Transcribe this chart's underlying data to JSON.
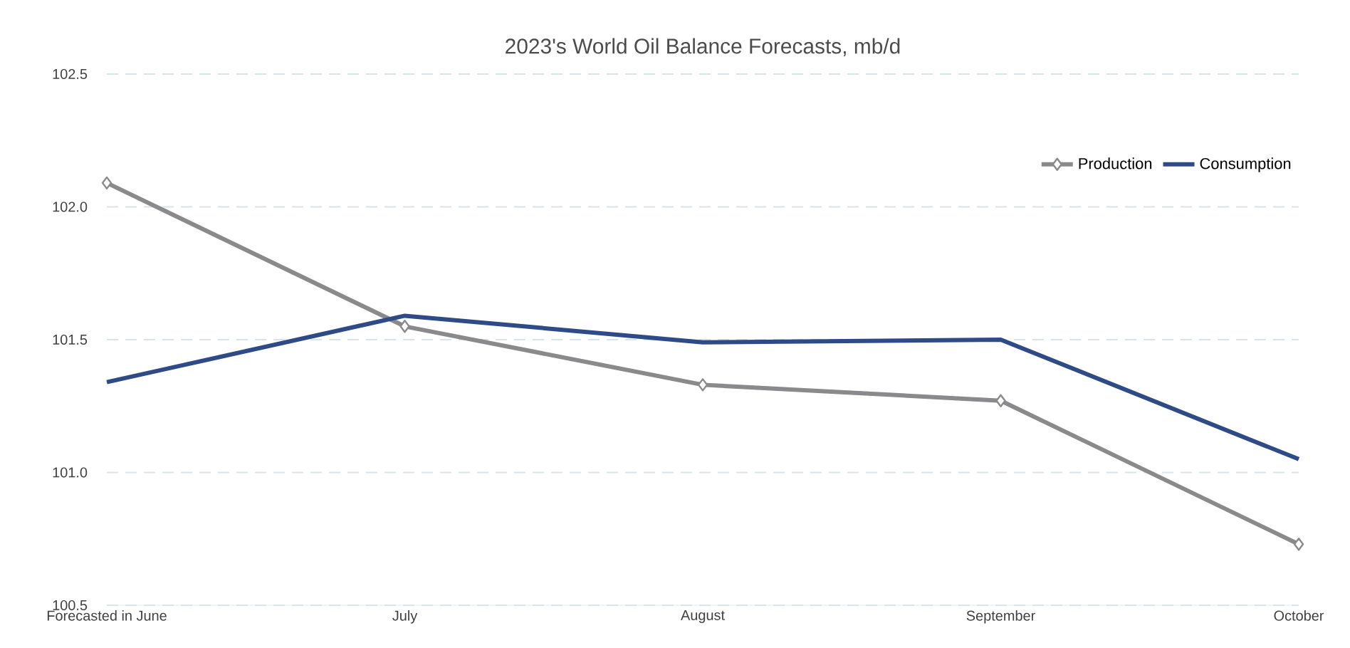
{
  "chart_data": {
    "type": "line",
    "title": "2023's World Oil Balance Forecasts, mb/d",
    "categories": [
      "Forecasted in June",
      "July",
      "August",
      "September",
      "October"
    ],
    "series": [
      {
        "name": "Production",
        "color": "#8a8a8c",
        "marker": "diamond",
        "values": [
          102.09,
          101.55,
          101.33,
          101.27,
          100.73
        ]
      },
      {
        "name": "Consumption",
        "color": "#2e4a87",
        "marker": "none",
        "values": [
          101.34,
          101.59,
          101.49,
          101.5,
          101.05
        ]
      }
    ],
    "ylim": [
      100.5,
      102.5
    ],
    "yticks": [
      {
        "value": 100.5,
        "label": "100.5"
      },
      {
        "value": 101,
        "label": "101.0"
      },
      {
        "value": 101.5,
        "label": "101.5"
      },
      {
        "value": 102,
        "label": "102.0"
      },
      {
        "value": 102.5,
        "label": "102.5"
      }
    ],
    "grid": "y",
    "legend": "top right",
    "line_style": "solid"
  }
}
